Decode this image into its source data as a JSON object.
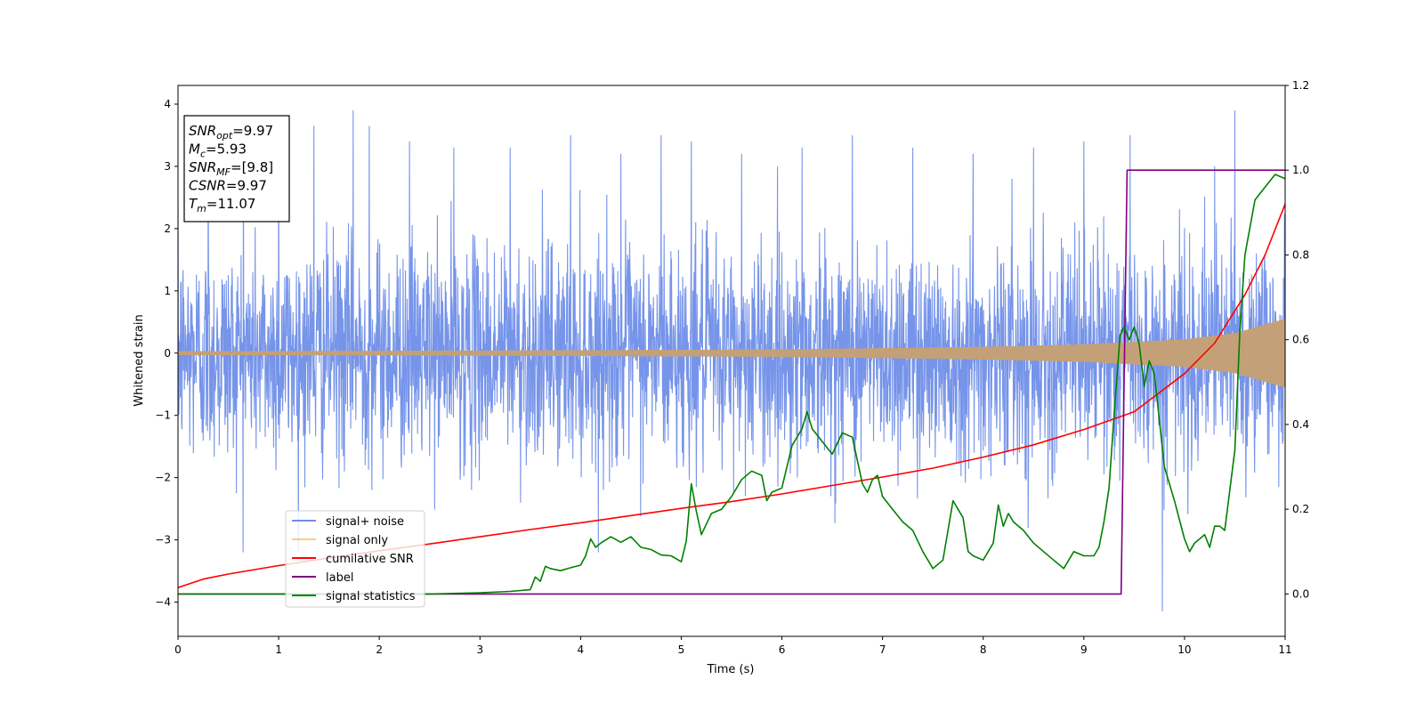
{
  "chart_data": {
    "type": "line",
    "xlabel": "Time (s)",
    "ylabel_left": "Whitened strain",
    "xlim": [
      0,
      11
    ],
    "ylim_left": [
      -4.55,
      4.3
    ],
    "ylim_right": [
      -0.1,
      1.2
    ],
    "x_ticks": [
      "0",
      "1",
      "2",
      "3",
      "4",
      "5",
      "6",
      "7",
      "8",
      "9",
      "10",
      "11"
    ],
    "y_left_ticks": [
      "−4",
      "−3",
      "−2",
      "−1",
      "0",
      "1",
      "2",
      "3",
      "4"
    ],
    "y_right_ticks": [
      "0.0",
      "0.2",
      "0.4",
      "0.6",
      "0.8",
      "1.0",
      "1.2"
    ],
    "grid": false,
    "legend_position": "lower-left",
    "info_box": {
      "lines": [
        {
          "sym": "SNR",
          "sub": "opt",
          "val": "=9.97"
        },
        {
          "sym": "M",
          "sub": "c",
          "val": "=5.93"
        },
        {
          "sym": "SNR",
          "sub": "MF",
          "val": "=[9.8]"
        },
        {
          "sym": "CSNR",
          "sub": "",
          "val": "=9.97"
        },
        {
          "sym": "T",
          "sub": "m",
          "val": "=11.07"
        }
      ]
    },
    "series": [
      {
        "name": "signal+ noise",
        "color": "#6f8ee8",
        "axis": "left",
        "kind": "noise",
        "sigma": 0.95,
        "peaks_x": [
          0.3,
          0.65,
          1.0,
          1.35,
          1.74,
          1.9,
          2.3,
          2.74,
          3.3,
          3.9,
          4.4,
          4.8,
          5.1,
          5.6,
          6.2,
          6.7,
          7.3,
          7.9,
          8.5,
          9.0,
          9.46,
          9.78,
          10.3,
          10.5
        ],
        "peaks_y": [
          3.1,
          3.7,
          3.3,
          3.65,
          3.9,
          3.65,
          3.4,
          3.3,
          3.3,
          3.5,
          3.2,
          3.5,
          3.4,
          3.2,
          3.3,
          3.5,
          3.3,
          3.2,
          3.3,
          3.4,
          3.5,
          -4.15,
          3.0,
          3.9
        ]
      },
      {
        "name": "signal only",
        "color": "#c8a070",
        "axis": "left",
        "kind": "chirp",
        "x": [
          0,
          2,
          4,
          6,
          8,
          9,
          10,
          10.5,
          11
        ],
        "envelope": [
          0.03,
          0.035,
          0.045,
          0.06,
          0.1,
          0.14,
          0.22,
          0.32,
          0.55
        ]
      },
      {
        "name": "cumilative SNR",
        "color": "#ff0000",
        "axis": "right",
        "x": [
          0,
          0.25,
          0.5,
          1,
          1.5,
          2,
          2.5,
          3,
          3.5,
          4,
          4.5,
          5,
          5.5,
          6,
          6.5,
          7,
          7.5,
          8,
          8.5,
          9,
          9.5,
          10,
          10.3,
          10.6,
          10.8,
          11
        ],
        "y": [
          0.015,
          0.035,
          0.047,
          0.067,
          0.085,
          0.102,
          0.118,
          0.135,
          0.152,
          0.168,
          0.185,
          0.202,
          0.218,
          0.236,
          0.256,
          0.276,
          0.297,
          0.323,
          0.352,
          0.388,
          0.43,
          0.52,
          0.592,
          0.706,
          0.8,
          0.92
        ]
      },
      {
        "name": "label",
        "color": "#800080",
        "axis": "right",
        "x": [
          0,
          9.37,
          9.43,
          11
        ],
        "y": [
          0.0,
          0.0,
          1.0,
          1.0
        ]
      },
      {
        "name": "signal statistics",
        "color": "#008000",
        "axis": "right",
        "x": [
          0,
          0.5,
          1,
          1.5,
          2,
          2.5,
          3,
          3.3,
          3.5,
          3.55,
          3.6,
          3.65,
          3.7,
          3.8,
          3.9,
          4.0,
          4.05,
          4.1,
          4.15,
          4.2,
          4.3,
          4.4,
          4.5,
          4.6,
          4.7,
          4.8,
          4.9,
          5.0,
          5.05,
          5.1,
          5.15,
          5.2,
          5.3,
          5.4,
          5.5,
          5.6,
          5.7,
          5.8,
          5.85,
          5.9,
          6.0,
          6.1,
          6.2,
          6.25,
          6.3,
          6.4,
          6.5,
          6.6,
          6.7,
          6.8,
          6.85,
          6.9,
          6.95,
          7.0,
          7.1,
          7.2,
          7.3,
          7.4,
          7.5,
          7.6,
          7.7,
          7.8,
          7.85,
          7.9,
          8.0,
          8.1,
          8.15,
          8.2,
          8.25,
          8.3,
          8.4,
          8.5,
          8.6,
          8.7,
          8.8,
          8.9,
          9.0,
          9.1,
          9.15,
          9.2,
          9.25,
          9.3,
          9.36,
          9.4,
          9.45,
          9.5,
          9.55,
          9.6,
          9.65,
          9.7,
          9.8,
          9.9,
          10.0,
          10.05,
          10.1,
          10.15,
          10.2,
          10.25,
          10.3,
          10.35,
          10.4,
          10.5,
          10.55,
          10.6,
          10.7,
          10.8,
          10.9,
          11.0
        ],
        "y": [
          0.0,
          0.0,
          0.0,
          0.0,
          0.0,
          0.0,
          0.003,
          0.006,
          0.01,
          0.04,
          0.03,
          0.065,
          0.06,
          0.055,
          0.062,
          0.068,
          0.09,
          0.13,
          0.11,
          0.12,
          0.135,
          0.122,
          0.135,
          0.11,
          0.105,
          0.092,
          0.09,
          0.076,
          0.125,
          0.26,
          0.195,
          0.14,
          0.19,
          0.2,
          0.23,
          0.27,
          0.29,
          0.28,
          0.22,
          0.24,
          0.25,
          0.35,
          0.39,
          0.43,
          0.39,
          0.36,
          0.33,
          0.38,
          0.37,
          0.26,
          0.24,
          0.27,
          0.28,
          0.23,
          0.2,
          0.17,
          0.15,
          0.1,
          0.06,
          0.08,
          0.22,
          0.18,
          0.1,
          0.09,
          0.08,
          0.12,
          0.21,
          0.16,
          0.19,
          0.17,
          0.15,
          0.12,
          0.1,
          0.08,
          0.06,
          0.1,
          0.09,
          0.09,
          0.11,
          0.17,
          0.25,
          0.42,
          0.61,
          0.63,
          0.6,
          0.63,
          0.59,
          0.49,
          0.55,
          0.52,
          0.3,
          0.22,
          0.13,
          0.1,
          0.12,
          0.13,
          0.14,
          0.11,
          0.16,
          0.16,
          0.15,
          0.34,
          0.62,
          0.8,
          0.93,
          0.96,
          0.99,
          0.98
        ]
      }
    ]
  }
}
